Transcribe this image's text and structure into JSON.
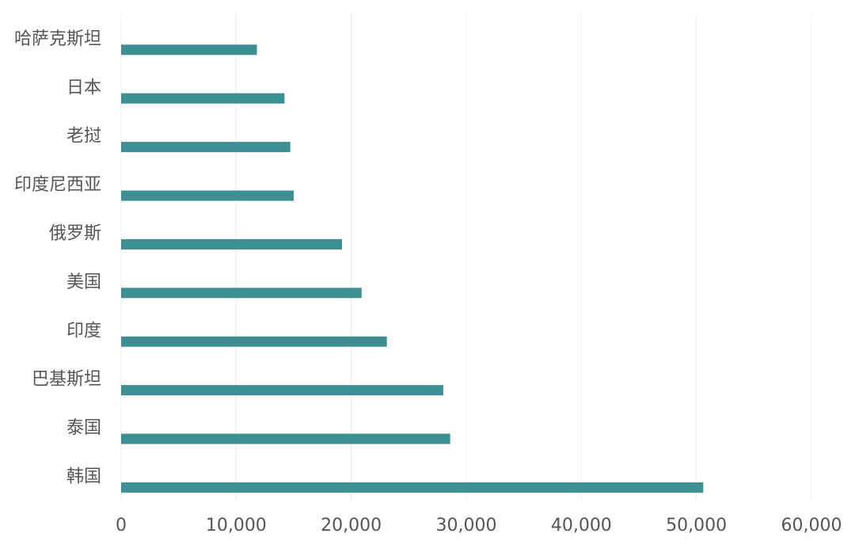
{
  "chart_data": {
    "type": "hbar",
    "categories": [
      "哈萨克斯坦",
      "日本",
      "老挝",
      "印度尼西亚",
      "俄罗斯",
      "美国",
      "印度",
      "巴基斯坦",
      "泰国",
      "韩国"
    ],
    "values": [
      11800,
      14200,
      14700,
      15000,
      19200,
      20900,
      23100,
      28000,
      28600,
      50600
    ],
    "color": "#3d8f94",
    "xlim": [
      0,
      60000
    ],
    "xticks": [
      0,
      {
        "value": 10000,
        "label": "10,000"
      },
      {
        "value": 20000,
        "label": "20,000"
      },
      {
        "value": 30000,
        "label": "30,000"
      },
      {
        "value": 40000,
        "label": "40,000"
      },
      {
        "value": 50000,
        "label": "50,000"
      },
      {
        "value": 60000,
        "label": "60,000"
      }
    ],
    "grid": true
  }
}
